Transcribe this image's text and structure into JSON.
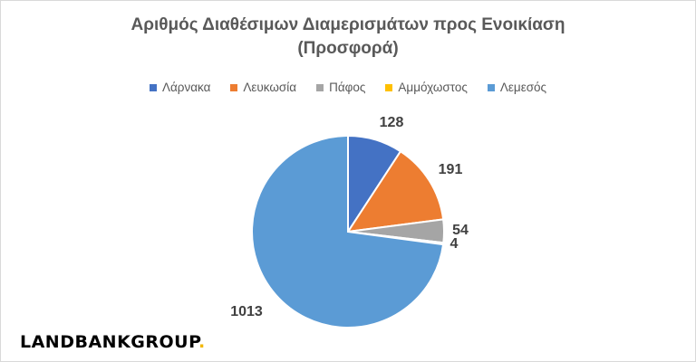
{
  "chart_data": {
    "type": "pie",
    "title_line1": "Αριθμός Διαθέσιμων Διαμερισμάτων προς Ενοικίαση",
    "title_line2": "(Προσφορά)",
    "legend_position": "top",
    "categories": [
      "Λάρνακα",
      "Λευκωσία",
      "Πάφος",
      "Αμμόχωστος",
      "Λεμεσός"
    ],
    "values": [
      128,
      191,
      54,
      4,
      1013
    ],
    "colors": [
      "#4472c4",
      "#ed7d31",
      "#a5a5a5",
      "#ffc000",
      "#5b9bd5"
    ],
    "data_labels": [
      "128",
      "191",
      "54",
      "4",
      "1013"
    ]
  },
  "logo": {
    "text": "LANDBANKGROUP",
    "dot": "."
  }
}
